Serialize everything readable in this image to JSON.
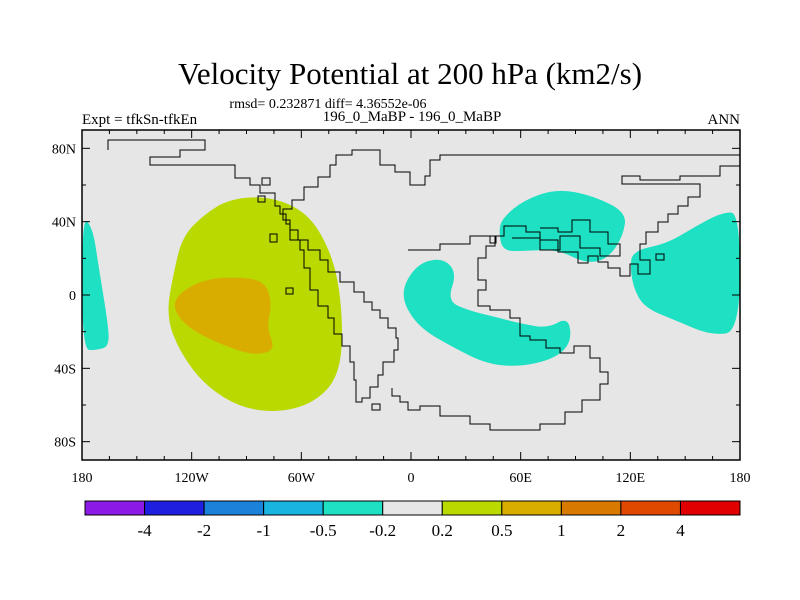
{
  "chart_data": {
    "type": "contour-map",
    "title": "Velocity Potential at 200 hPa (km2/s)",
    "stats_text": "rmsd= 0.232871  diff= 4.36552e-06",
    "left_label": "Expt = tfkSn-tfkEn",
    "center_label": "196_0_MaBP - 196_0_MaBP",
    "right_label": "ANN",
    "x_range": [
      -180,
      180
    ],
    "y_range": [
      -90,
      90
    ],
    "x_ticks": [
      {
        "value": -180,
        "label": "180"
      },
      {
        "value": -120,
        "label": "120W"
      },
      {
        "value": -60,
        "label": "60W"
      },
      {
        "value": 0,
        "label": "0"
      },
      {
        "value": 60,
        "label": "60E"
      },
      {
        "value": 120,
        "label": "120E"
      },
      {
        "value": 180,
        "label": "180"
      }
    ],
    "y_ticks": [
      {
        "value": 80,
        "label": "80N"
      },
      {
        "value": 40,
        "label": "40N"
      },
      {
        "value": 0,
        "label": "0"
      },
      {
        "value": -40,
        "label": "40S"
      },
      {
        "value": -80,
        "label": "80S"
      }
    ],
    "background_color": "#e6e6e6",
    "colorbar": {
      "colors": [
        "#8c1ae6",
        "#1f1fe0",
        "#1a82d8",
        "#1ab4e0",
        "#1ee0c2",
        "#e6e6e6",
        "#b9d900",
        "#d9ad00",
        "#d97a00",
        "#e04a00",
        "#e00000"
      ],
      "labels": [
        "-4",
        "-2",
        "-1",
        "-0.5",
        "-0.2",
        "0.2",
        "0.5",
        "1",
        "2",
        "4"
      ]
    },
    "regions": [
      {
        "name": "positive-0.2-0.5",
        "level": "0.2 to 0.5",
        "color": "#b9d900",
        "points": [
          [
            -113,
            44
          ],
          [
            -100,
            52
          ],
          [
            -80,
            54
          ],
          [
            -62,
            48
          ],
          [
            -50,
            36
          ],
          [
            -40,
            12
          ],
          [
            -37,
            -22
          ],
          [
            -40,
            -45
          ],
          [
            -52,
            -58
          ],
          [
            -70,
            -64
          ],
          [
            -92,
            -62
          ],
          [
            -112,
            -50
          ],
          [
            -126,
            -32
          ],
          [
            -134,
            -12
          ],
          [
            -130,
            12
          ],
          [
            -125,
            32
          ]
        ]
      },
      {
        "name": "positive-0.5-1",
        "level": "0.5 to 1",
        "color": "#d9ad00",
        "points": [
          [
            -128,
            0
          ],
          [
            -115,
            8
          ],
          [
            -98,
            10
          ],
          [
            -80,
            8
          ],
          [
            -76,
            -5
          ],
          [
            -79,
            -18
          ],
          [
            -74,
            -30
          ],
          [
            -86,
            -33
          ],
          [
            -104,
            -27
          ],
          [
            -122,
            -18
          ],
          [
            -130,
            -8
          ]
        ]
      },
      {
        "name": "negative-west-edge",
        "level": "-0.5 to -0.2",
        "color": "#1ee0c2",
        "points": [
          [
            -180,
            44
          ],
          [
            -174,
            36
          ],
          [
            -171,
            16
          ],
          [
            -166,
            -14
          ],
          [
            -165,
            -28
          ],
          [
            -172,
            -30
          ],
          [
            -180,
            -30
          ]
        ]
      },
      {
        "name": "negative-atlantic-africa",
        "level": "-0.5 to -0.2",
        "color": "#1ee0c2",
        "points": [
          [
            -4,
            6
          ],
          [
            5,
            18
          ],
          [
            18,
            20
          ],
          [
            25,
            12
          ],
          [
            20,
            -3
          ],
          [
            30,
            -8
          ],
          [
            50,
            -13
          ],
          [
            62,
            -16
          ],
          [
            75,
            -18
          ],
          [
            86,
            -12
          ],
          [
            88,
            -25
          ],
          [
            80,
            -34
          ],
          [
            62,
            -39
          ],
          [
            42,
            -38
          ],
          [
            22,
            -28
          ],
          [
            5,
            -18
          ],
          [
            -4,
            -5
          ]
        ]
      },
      {
        "name": "negative-asia",
        "level": "-0.5 to -0.2",
        "color": "#1ee0c2",
        "points": [
          [
            50,
            42
          ],
          [
            62,
            52
          ],
          [
            80,
            58
          ],
          [
            100,
            54
          ],
          [
            118,
            45
          ],
          [
            116,
            32
          ],
          [
            108,
            20
          ],
          [
            96,
            17
          ],
          [
            80,
            25
          ],
          [
            62,
            24
          ],
          [
            50,
            24
          ],
          [
            48,
            35
          ]
        ]
      },
      {
        "name": "negative-pacific",
        "level": "-0.5 to -0.2",
        "color": "#1ee0c2",
        "points": [
          [
            121,
            24
          ],
          [
            140,
            28
          ],
          [
            155,
            37
          ],
          [
            170,
            45
          ],
          [
            180,
            45
          ],
          [
            180,
            -20
          ],
          [
            164,
            -22
          ],
          [
            145,
            -14
          ],
          [
            128,
            -7
          ],
          [
            122,
            3
          ],
          [
            120,
            14
          ]
        ]
      }
    ]
  }
}
